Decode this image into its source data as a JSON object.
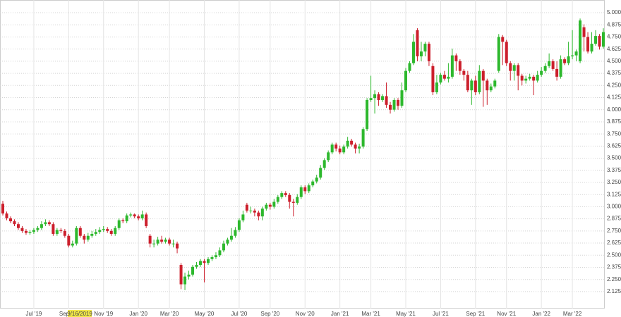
{
  "chart_data": {
    "type": "candlestick",
    "up_color": "#2db82d",
    "down_color": "#cc1f2c",
    "grid": true,
    "crosshair_label": "9/16/2019",
    "ylim": [
      1.95,
      5.131
    ],
    "yticks": [
      {
        "value": 2.125,
        "label": "2.125"
      },
      {
        "value": 2.25,
        "label": "2.250"
      },
      {
        "value": 2.375,
        "label": "2.375"
      },
      {
        "value": 2.5,
        "label": "2.500"
      },
      {
        "value": 2.625,
        "label": "2.625"
      },
      {
        "value": 2.75,
        "label": "2.750"
      },
      {
        "value": 2.875,
        "label": "2.875"
      },
      {
        "value": 3,
        "label": "3.000"
      },
      {
        "value": 3.125,
        "label": "3.125"
      },
      {
        "value": 3.25,
        "label": "3.250"
      },
      {
        "value": 3.375,
        "label": "3.375"
      },
      {
        "value": 3.5,
        "label": "3.500"
      },
      {
        "value": 3.625,
        "label": "3.625"
      },
      {
        "value": 3.75,
        "label": "3.750"
      },
      {
        "value": 3.875,
        "label": "3.875"
      },
      {
        "value": 4,
        "label": "4.000"
      },
      {
        "value": 4.125,
        "label": "4.125"
      },
      {
        "value": 4.25,
        "label": "4.250"
      },
      {
        "value": 4.375,
        "label": "4.375"
      },
      {
        "value": 4.5,
        "label": "4.500"
      },
      {
        "value": 4.625,
        "label": "4.625"
      },
      {
        "value": 4.75,
        "label": "4.750"
      },
      {
        "value": 4.875,
        "label": "4.875"
      },
      {
        "value": 5,
        "label": "5.000"
      }
    ],
    "categories": [
      null,
      null,
      null,
      null,
      null,
      null,
      null,
      null,
      "Jul '19",
      null,
      null,
      null,
      null,
      null,
      null,
      null,
      null,
      "Sep '19",
      null,
      null,
      null,
      null,
      null,
      null,
      null,
      null,
      "Nov '19",
      null,
      null,
      null,
      null,
      null,
      null,
      null,
      null,
      "Jan '20",
      null,
      null,
      null,
      null,
      null,
      null,
      null,
      "Mar '20",
      null,
      null,
      null,
      null,
      null,
      null,
      null,
      null,
      "May '20",
      null,
      null,
      null,
      null,
      null,
      null,
      null,
      null,
      "Jul '20",
      null,
      null,
      null,
      null,
      null,
      null,
      null,
      "Sep '20",
      null,
      null,
      null,
      null,
      null,
      null,
      null,
      null,
      "Nov '20",
      null,
      null,
      null,
      null,
      null,
      null,
      null,
      null,
      "Jan '21",
      null,
      null,
      null,
      null,
      null,
      null,
      null,
      "Mar '21",
      null,
      null,
      null,
      null,
      null,
      null,
      null,
      null,
      "May '21",
      null,
      null,
      null,
      null,
      null,
      null,
      null,
      null,
      "Jul '21",
      null,
      null,
      null,
      null,
      null,
      null,
      null,
      null,
      "Sep '21",
      null,
      null,
      null,
      null,
      null,
      null,
      null,
      "Nov '21",
      null,
      null,
      null,
      null,
      null,
      null,
      null,
      null,
      "Jan '22",
      null,
      null,
      null,
      null,
      null,
      null,
      null,
      "Mar '22",
      null,
      null,
      null,
      null,
      null,
      null,
      null,
      null
    ],
    "open": [
      3.03,
      2.93,
      2.88,
      2.85,
      2.82,
      2.78,
      2.75,
      2.73,
      2.74,
      2.76,
      2.78,
      2.82,
      2.84,
      2.82,
      2.72,
      2.76,
      2.75,
      2.7,
      2.6,
      2.62,
      2.78,
      2.7,
      2.66,
      2.7,
      2.72,
      2.74,
      2.76,
      2.77,
      2.75,
      2.72,
      2.78,
      2.86,
      2.85,
      2.91,
      2.92,
      2.9,
      2.88,
      2.92,
      2.7,
      2.62,
      2.62,
      2.66,
      2.64,
      2.66,
      2.62,
      2.62,
      2.4,
      2.2,
      2.28,
      2.3,
      2.38,
      2.4,
      2.44,
      2.42,
      2.46,
      2.48,
      2.5,
      2.55,
      2.62,
      2.66,
      2.7,
      2.76,
      2.86,
      3.02,
      2.96,
      2.96,
      2.94,
      2.9,
      2.98,
      3.02,
      3.0,
      3.05,
      3.1,
      3.14,
      3.12,
      3.05,
      3.04,
      3.1,
      3.2,
      3.16,
      3.22,
      3.26,
      3.3,
      3.4,
      3.48,
      3.56,
      3.64,
      3.6,
      3.56,
      3.62,
      3.68,
      3.64,
      3.6,
      3.62,
      3.8,
      4.1,
      4.12,
      4.16,
      4.1,
      4.14,
      4.05,
      4.0,
      4.1,
      4.04,
      4.2,
      4.4,
      4.48,
      4.82,
      4.55,
      4.6,
      4.68,
      4.45,
      4.18,
      4.28,
      4.36,
      4.32,
      4.34,
      4.56,
      4.5,
      4.4,
      4.36,
      4.2,
      4.3,
      4.18,
      4.4,
      4.3,
      4.2,
      4.24,
      4.4,
      4.75,
      4.7,
      4.48,
      4.4,
      4.46,
      4.35,
      4.3,
      4.32,
      4.34,
      4.3,
      4.36,
      4.4,
      4.45,
      4.5,
      4.42,
      4.34,
      4.52,
      4.48,
      4.55,
      4.56,
      4.5,
      4.85,
      4.75,
      4.6,
      4.68,
      4.76,
      4.65
    ],
    "high": [
      3.06,
      2.95,
      2.9,
      2.87,
      2.84,
      2.8,
      2.77,
      2.76,
      2.78,
      2.8,
      2.85,
      2.87,
      2.86,
      2.84,
      2.78,
      2.78,
      2.77,
      2.72,
      2.65,
      2.8,
      2.8,
      2.72,
      2.73,
      2.75,
      2.77,
      2.79,
      2.8,
      2.79,
      2.77,
      2.8,
      2.88,
      2.88,
      2.93,
      2.94,
      2.93,
      2.92,
      2.96,
      2.94,
      2.72,
      2.66,
      2.69,
      2.7,
      2.68,
      2.68,
      2.66,
      2.64,
      2.42,
      2.32,
      2.34,
      2.4,
      2.43,
      2.46,
      2.46,
      2.48,
      2.5,
      2.53,
      2.58,
      2.65,
      2.68,
      2.78,
      2.79,
      2.88,
      2.96,
      3.04,
      3.0,
      2.98,
      2.96,
      3.0,
      3.04,
      3.04,
      3.08,
      3.12,
      3.16,
      3.16,
      3.14,
      3.08,
      3.13,
      3.22,
      3.22,
      3.24,
      3.28,
      3.33,
      3.43,
      3.5,
      3.58,
      3.66,
      3.66,
      3.63,
      3.64,
      3.72,
      3.7,
      3.66,
      3.65,
      3.82,
      4.12,
      4.35,
      4.2,
      4.18,
      4.16,
      4.28,
      4.08,
      4.12,
      4.12,
      4.28,
      4.43,
      4.5,
      4.78,
      4.84,
      4.7,
      4.7,
      4.7,
      4.48,
      4.36,
      4.38,
      4.4,
      4.48,
      4.63,
      4.58,
      4.52,
      4.42,
      4.4,
      4.32,
      4.35,
      4.46,
      4.42,
      4.32,
      4.27,
      4.32,
      4.78,
      4.77,
      4.72,
      4.5,
      4.48,
      4.48,
      4.37,
      4.35,
      4.37,
      4.36,
      4.4,
      4.44,
      4.48,
      4.58,
      4.52,
      4.5,
      4.56,
      4.54,
      4.7,
      4.82,
      4.62,
      4.94,
      4.88,
      4.8,
      4.8,
      4.82,
      4.78,
      4.84
    ],
    "low": [
      2.91,
      2.86,
      2.83,
      2.8,
      2.76,
      2.73,
      2.71,
      2.71,
      2.72,
      2.74,
      2.76,
      2.8,
      2.8,
      2.7,
      2.7,
      2.73,
      2.68,
      2.58,
      2.58,
      2.6,
      2.68,
      2.62,
      2.64,
      2.68,
      2.7,
      2.72,
      2.74,
      2.73,
      2.7,
      2.7,
      2.76,
      2.83,
      2.83,
      2.89,
      2.88,
      2.86,
      2.86,
      2.78,
      2.58,
      2.58,
      2.6,
      2.62,
      2.62,
      2.6,
      2.58,
      2.52,
      2.15,
      2.14,
      2.25,
      2.28,
      2.36,
      2.38,
      2.22,
      2.4,
      2.44,
      2.46,
      2.48,
      2.53,
      2.6,
      2.64,
      2.68,
      2.74,
      2.84,
      2.94,
      2.93,
      2.9,
      2.86,
      2.86,
      2.96,
      2.97,
      2.98,
      3.03,
      3.08,
      3.1,
      2.98,
      2.9,
      3.02,
      3.08,
      3.13,
      3.14,
      3.2,
      3.24,
      3.28,
      3.38,
      3.46,
      3.54,
      3.57,
      3.54,
      3.54,
      3.6,
      3.62,
      3.55,
      3.55,
      3.6,
      3.78,
      4.08,
      3.96,
      4.04,
      4.08,
      4.02,
      3.96,
      3.98,
      4.0,
      4.02,
      4.18,
      4.38,
      4.46,
      4.5,
      4.5,
      4.55,
      4.45,
      4.15,
      4.16,
      4.26,
      4.3,
      4.28,
      4.32,
      4.4,
      4.36,
      4.3,
      4.18,
      4.05,
      4.15,
      4.16,
      4.03,
      4.05,
      4.18,
      4.22,
      4.38,
      4.46,
      4.45,
      4.3,
      4.3,
      4.2,
      4.25,
      4.27,
      4.3,
      4.15,
      4.28,
      4.34,
      4.38,
      4.43,
      4.4,
      4.3,
      4.32,
      4.46,
      4.46,
      4.52,
      4.5,
      4.48,
      4.6,
      4.58,
      4.58,
      4.66,
      4.62,
      4.63
    ],
    "close": [
      2.93,
      2.88,
      2.85,
      2.82,
      2.78,
      2.75,
      2.73,
      2.74,
      2.76,
      2.78,
      2.82,
      2.84,
      2.82,
      2.72,
      2.76,
      2.75,
      2.7,
      2.6,
      2.62,
      2.78,
      2.7,
      2.66,
      2.7,
      2.72,
      2.74,
      2.76,
      2.77,
      2.75,
      2.72,
      2.78,
      2.86,
      2.85,
      2.91,
      2.92,
      2.9,
      2.88,
      2.92,
      2.8,
      2.62,
      2.62,
      2.66,
      2.64,
      2.66,
      2.62,
      2.62,
      2.57,
      2.2,
      2.28,
      2.3,
      2.38,
      2.4,
      2.44,
      2.42,
      2.46,
      2.48,
      2.5,
      2.55,
      2.62,
      2.66,
      2.7,
      2.76,
      2.86,
      2.92,
      2.96,
      2.96,
      2.94,
      2.9,
      2.98,
      3.02,
      3.0,
      3.05,
      3.1,
      3.14,
      3.12,
      3.05,
      3.04,
      3.1,
      3.2,
      3.16,
      3.22,
      3.26,
      3.3,
      3.4,
      3.48,
      3.56,
      3.64,
      3.6,
      3.56,
      3.62,
      3.68,
      3.64,
      3.6,
      3.62,
      3.8,
      4.1,
      4.12,
      4.16,
      4.1,
      4.14,
      4.05,
      4.0,
      4.1,
      4.04,
      4.2,
      4.4,
      4.48,
      4.7,
      4.55,
      4.6,
      4.68,
      4.5,
      4.18,
      4.28,
      4.36,
      4.32,
      4.34,
      4.56,
      4.5,
      4.4,
      4.36,
      4.2,
      4.3,
      4.18,
      4.4,
      4.3,
      4.2,
      4.24,
      4.3,
      4.75,
      4.7,
      4.48,
      4.4,
      4.46,
      4.35,
      4.3,
      4.32,
      4.34,
      4.3,
      4.36,
      4.4,
      4.45,
      4.5,
      4.42,
      4.34,
      4.52,
      4.48,
      4.55,
      4.56,
      4.6,
      4.92,
      4.75,
      4.6,
      4.68,
      4.76,
      4.65,
      4.8
    ]
  }
}
